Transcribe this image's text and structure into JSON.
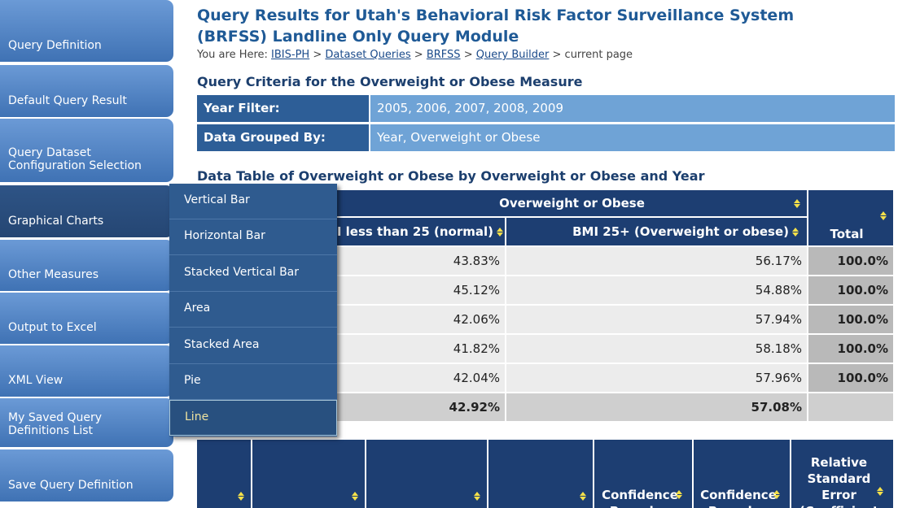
{
  "nav": [
    "Query Definition",
    "Default Query Result",
    "Query Dataset Configuration Selection",
    "Graphical Charts",
    "Other Measures",
    "Output to Excel",
    "XML View",
    "My Saved Query Definitions List",
    "Save Query Definition"
  ],
  "menu": [
    "Vertical Bar",
    "Horizontal Bar",
    "Stacked Vertical Bar",
    "Area",
    "Stacked Area",
    "Pie",
    "Line"
  ],
  "page_title": "Query Results for Utah's Behavioral Risk Factor Surveillance System (BRFSS) Landline Only Query Module",
  "breadcrumb": {
    "prefix": "You are Here:",
    "separator": ">",
    "links": [
      "IBIS-PH",
      "Dataset Queries",
      "BRFSS",
      "Query Builder"
    ],
    "current": "current page"
  },
  "criteria": {
    "title": "Query Criteria for the Overweight or Obese Measure",
    "rows": [
      [
        "Year Filter:",
        "2005, 2006, 2007, 2008, 2009"
      ],
      [
        "Data Grouped By:",
        "Year, Overweight or Obese"
      ]
    ]
  },
  "data_table": {
    "title": "Data Table of Overweight or Obese by Overweight or Obese and Year",
    "group_header": "Overweight or Obese",
    "columns": [
      "BMI less than 25 (normal)",
      "BMI 25+ (Overweight or obese)",
      "Total"
    ],
    "rows": [
      [
        "43.83%",
        "56.17%",
        "100.0%"
      ],
      [
        "45.12%",
        "54.88%",
        "100.0%"
      ],
      [
        "42.06%",
        "57.94%",
        "100.0%"
      ],
      [
        "41.82%",
        "58.18%",
        "100.0%"
      ],
      [
        "42.04%",
        "57.96%",
        "100.0%"
      ]
    ],
    "totals": [
      "42.92%",
      "57.08%"
    ]
  },
  "second_table": {
    "headers": [
      "Confidence Bounds -",
      "Confidence Bounds -",
      "Relative Standard Error (Coefficient"
    ]
  }
}
